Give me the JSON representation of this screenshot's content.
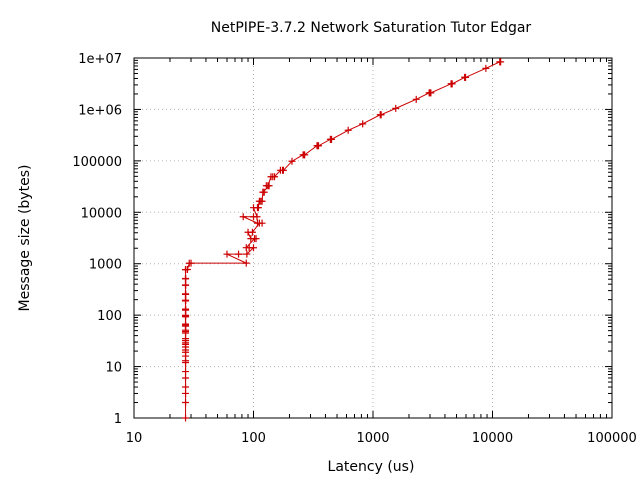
{
  "chart_data": {
    "type": "line",
    "title": "NetPIPE-3.7.2 Network Saturation Tutor Edgar",
    "xlabel": "Latency (us)",
    "ylabel": "Message size (bytes)",
    "xscale": "log",
    "yscale": "log",
    "xlim": [
      10,
      100000
    ],
    "ylim": [
      1,
      10000000
    ],
    "grid": true,
    "x_ticks": [
      "10",
      "100",
      "1000",
      "10000",
      "100000"
    ],
    "y_ticks": [
      "1",
      "10",
      "100",
      "1000",
      "10000",
      "100000",
      "1e+06",
      "1e+07"
    ],
    "series": [
      {
        "color": "#cc0000",
        "marker": "plus",
        "points": [
          [
            27,
            1
          ],
          [
            27,
            2
          ],
          [
            27,
            3
          ],
          [
            27,
            4
          ],
          [
            27,
            6
          ],
          [
            27,
            8
          ],
          [
            27,
            12
          ],
          [
            27,
            13
          ],
          [
            27,
            16
          ],
          [
            27,
            19
          ],
          [
            27,
            21
          ],
          [
            27,
            24
          ],
          [
            27,
            27
          ],
          [
            27,
            29
          ],
          [
            27,
            32
          ],
          [
            27,
            35
          ],
          [
            27,
            45
          ],
          [
            27,
            48
          ],
          [
            27,
            51
          ],
          [
            27,
            61
          ],
          [
            27,
            64
          ],
          [
            27,
            67
          ],
          [
            27,
            93
          ],
          [
            27,
            96
          ],
          [
            27,
            99
          ],
          [
            27,
            125
          ],
          [
            27,
            128
          ],
          [
            27,
            131
          ],
          [
            27,
            189
          ],
          [
            27,
            192
          ],
          [
            27,
            195
          ],
          [
            27,
            253
          ],
          [
            27,
            256
          ],
          [
            27,
            259
          ],
          [
            27,
            381
          ],
          [
            27,
            384
          ],
          [
            27,
            387
          ],
          [
            27,
            509
          ],
          [
            27,
            512
          ],
          [
            27,
            515
          ],
          [
            27,
            765
          ],
          [
            27,
            768
          ],
          [
            28,
            771
          ],
          [
            29,
            1021
          ],
          [
            30,
            1024
          ],
          [
            87,
            1027
          ],
          [
            60,
            1533
          ],
          [
            75,
            1536
          ],
          [
            88,
            1539
          ],
          [
            100,
            2045
          ],
          [
            92,
            2048
          ],
          [
            87,
            2051
          ],
          [
            102,
            3069
          ],
          [
            105,
            3072
          ],
          [
            95,
            3075
          ],
          [
            90,
            4093
          ],
          [
            98,
            4096
          ],
          [
            112,
            6141
          ],
          [
            118,
            6144
          ],
          [
            108,
            6147
          ],
          [
            82,
            8189
          ],
          [
            100,
            8192
          ],
          [
            107,
            8195
          ],
          [
            100,
            12285
          ],
          [
            110,
            12288
          ],
          [
            108,
            12291
          ],
          [
            112,
            16381
          ],
          [
            115,
            16384
          ],
          [
            118,
            16387
          ],
          [
            120,
            24573
          ],
          [
            123,
            24576
          ],
          [
            120,
            24579
          ],
          [
            135,
            32765
          ],
          [
            128,
            32768
          ],
          [
            132,
            32771
          ],
          [
            140,
            49149
          ],
          [
            145,
            49152
          ],
          [
            150,
            49155
          ],
          [
            168,
            65533
          ],
          [
            175,
            65536
          ],
          [
            178,
            65539
          ],
          [
            210,
            98301
          ],
          [
            260,
            131069
          ],
          [
            265,
            131072
          ],
          [
            268,
            131075
          ],
          [
            340,
            196605
          ],
          [
            345,
            196608
          ],
          [
            350,
            196611
          ],
          [
            440,
            262141
          ],
          [
            445,
            262144
          ],
          [
            450,
            262147
          ],
          [
            620,
            393213
          ],
          [
            820,
            524285
          ],
          [
            1150,
            786429
          ],
          [
            1160,
            786432
          ],
          [
            1170,
            786435
          ],
          [
            1550,
            1048573
          ],
          [
            2300,
            1572861
          ],
          [
            2950,
            2097149
          ],
          [
            3000,
            2097152
          ],
          [
            3050,
            2097155
          ],
          [
            4500,
            3145725
          ],
          [
            4550,
            3145728
          ],
          [
            4600,
            3145731
          ],
          [
            5850,
            4194301
          ],
          [
            5900,
            4194304
          ],
          [
            5950,
            4194307
          ],
          [
            8800,
            6291453
          ],
          [
            11500,
            8388605
          ],
          [
            11600,
            8388608
          ],
          [
            11700,
            8388611
          ]
        ]
      }
    ]
  }
}
